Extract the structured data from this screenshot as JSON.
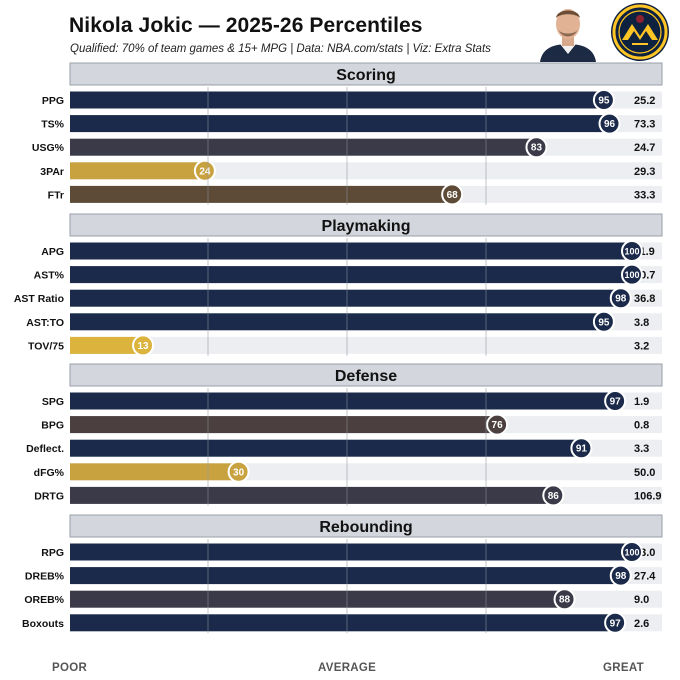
{
  "header": {
    "title": "Nikola Jokic  — 2025-26 Percentiles",
    "subtitle": "Qualified: 70% of team games & 15+ MPG | Data: NBA.com/stats | Viz: Extra Stats"
  },
  "footer": {
    "left": "POOR",
    "center": "AVERAGE",
    "right": "GREAT"
  },
  "colors": {
    "navy": "#1b2a4a",
    "dark_slate": "#3b3a48",
    "brown_gray": "#4b3f3f",
    "brown": "#5e4b37",
    "gold": "#c9a240",
    "gold_bright": "#dcb33c",
    "section_bg": "#d3d6dc",
    "track": "#eceef1"
  },
  "chart_data": {
    "type": "bar",
    "orientation": "horizontal",
    "title": "Nikola Jokic  — 2025-26 Percentiles",
    "subtitle": "Qualified: 70% of team games & 15+ MPG | Data: NBA.com/stats | Viz: Extra Stats",
    "xlim": [
      0,
      100
    ],
    "grid": true,
    "scale_labels": [
      "POOR",
      "AVERAGE",
      "GREAT"
    ],
    "groups": [
      {
        "name": "Scoring",
        "rows": [
          {
            "label": "PPG",
            "percentile": 95,
            "value": "25.2",
            "color": "#1b2a4a"
          },
          {
            "label": "TS%",
            "percentile": 96,
            "value": "73.3",
            "color": "#1b2a4a"
          },
          {
            "label": "USG%",
            "percentile": 83,
            "value": "24.7",
            "color": "#3b3a48"
          },
          {
            "label": "3PAr",
            "percentile": 24,
            "value": "29.3",
            "color": "#c9a240"
          },
          {
            "label": "FTr",
            "percentile": 68,
            "value": "33.3",
            "color": "#5e4b37"
          }
        ]
      },
      {
        "name": "Playmaking",
        "rows": [
          {
            "label": "APG",
            "percentile": 100,
            "value": "11.9",
            "color": "#1b2a4a"
          },
          {
            "label": "AST%",
            "percentile": 100,
            "value": "50.7",
            "color": "#1b2a4a"
          },
          {
            "label": "AST Ratio",
            "percentile": 98,
            "value": "36.8",
            "color": "#1b2a4a"
          },
          {
            "label": "AST:TO",
            "percentile": 95,
            "value": "3.8",
            "color": "#1b2a4a"
          },
          {
            "label": "TOV/75",
            "percentile": 13,
            "value": "3.2",
            "color": "#dcb33c"
          }
        ]
      },
      {
        "name": "Defense",
        "rows": [
          {
            "label": "SPG",
            "percentile": 97,
            "value": "1.9",
            "color": "#1b2a4a"
          },
          {
            "label": "BPG",
            "percentile": 76,
            "value": "0.8",
            "color": "#4b3f3f"
          },
          {
            "label": "Deflect.",
            "percentile": 91,
            "value": "3.3",
            "color": "#1b2a4a"
          },
          {
            "label": "dFG%",
            "percentile": 30,
            "value": "50.0",
            "color": "#c9a240"
          },
          {
            "label": "DRTG",
            "percentile": 86,
            "value": "106.9",
            "color": "#3b3a48"
          }
        ]
      },
      {
        "name": "Rebounding",
        "rows": [
          {
            "label": "RPG",
            "percentile": 100,
            "value": "13.0",
            "color": "#1b2a4a"
          },
          {
            "label": "DREB%",
            "percentile": 98,
            "value": "27.4",
            "color": "#1b2a4a"
          },
          {
            "label": "OREB%",
            "percentile": 88,
            "value": "9.0",
            "color": "#3b3a48"
          },
          {
            "label": "Boxouts",
            "percentile": 97,
            "value": "2.6",
            "color": "#1b2a4a"
          }
        ]
      }
    ]
  }
}
